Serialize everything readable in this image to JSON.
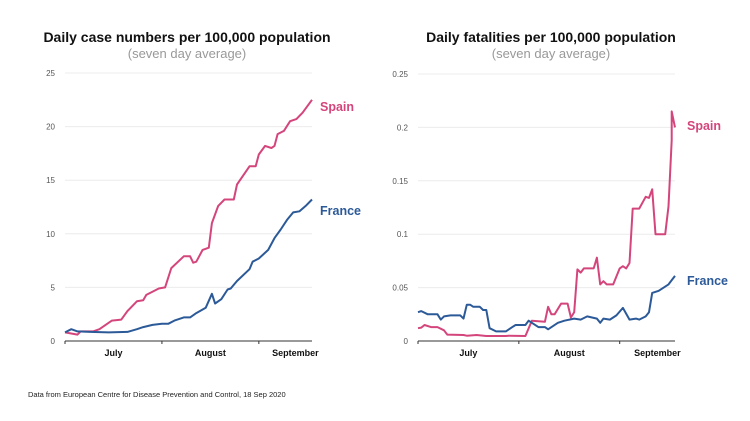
{
  "footnote": "Data from European Centre for Disease Prevention and Control, 18 Sep 2020",
  "colors": {
    "Spain": "#d4457c",
    "France": "#2c5a98",
    "grid": "#ececec",
    "axis": "#333333"
  },
  "chart_data": [
    {
      "type": "line",
      "title": "Daily case numbers per 100,000 population",
      "subtitle": "(seven day average)",
      "xlim": [
        "2020-07-01",
        "2020-09-18"
      ],
      "ylim": [
        0,
        25
      ],
      "yticks": [
        "0",
        "5",
        "10",
        "15",
        "20",
        "25"
      ],
      "xtick_labels": [
        "July",
        "August",
        "September"
      ],
      "grid": true,
      "series": [
        {
          "name": "Spain",
          "points": [
            [
              "2020-07-01",
              0.8
            ],
            [
              "2020-07-05",
              0.6
            ],
            [
              "2020-07-06",
              0.9
            ],
            [
              "2020-07-10",
              0.9
            ],
            [
              "2020-07-12",
              1.1
            ],
            [
              "2020-07-16",
              1.9
            ],
            [
              "2020-07-19",
              2.0
            ],
            [
              "2020-07-21",
              2.8
            ],
            [
              "2020-07-24",
              3.7
            ],
            [
              "2020-07-26",
              3.8
            ],
            [
              "2020-07-27",
              4.3
            ],
            [
              "2020-07-31",
              4.9
            ],
            [
              "2020-08-02",
              5.0
            ],
            [
              "2020-08-04",
              6.8
            ],
            [
              "2020-08-08",
              7.9
            ],
            [
              "2020-08-10",
              7.9
            ],
            [
              "2020-08-11",
              7.3
            ],
            [
              "2020-08-12",
              7.4
            ],
            [
              "2020-08-14",
              8.5
            ],
            [
              "2020-08-16",
              8.7
            ],
            [
              "2020-08-17",
              11.0
            ],
            [
              "2020-08-19",
              12.6
            ],
            [
              "2020-08-21",
              13.2
            ],
            [
              "2020-08-24",
              13.2
            ],
            [
              "2020-08-25",
              14.6
            ],
            [
              "2020-08-29",
              16.3
            ],
            [
              "2020-08-31",
              16.3
            ],
            [
              "2020-09-01",
              17.4
            ],
            [
              "2020-09-03",
              18.2
            ],
            [
              "2020-09-05",
              18.0
            ],
            [
              "2020-09-06",
              18.2
            ],
            [
              "2020-09-07",
              19.3
            ],
            [
              "2020-09-09",
              19.6
            ],
            [
              "2020-09-11",
              20.5
            ],
            [
              "2020-09-13",
              20.7
            ],
            [
              "2020-09-15",
              21.3
            ],
            [
              "2020-09-16",
              21.7
            ],
            [
              "2020-09-18",
              22.5
            ]
          ]
        },
        {
          "name": "France",
          "points": [
            [
              "2020-07-01",
              0.8
            ],
            [
              "2020-07-03",
              1.1
            ],
            [
              "2020-07-05",
              0.9
            ],
            [
              "2020-07-09",
              0.85
            ],
            [
              "2020-07-15",
              0.8
            ],
            [
              "2020-07-21",
              0.85
            ],
            [
              "2020-07-24",
              1.1
            ],
            [
              "2020-07-26",
              1.3
            ],
            [
              "2020-07-29",
              1.5
            ],
            [
              "2020-08-01",
              1.6
            ],
            [
              "2020-08-03",
              1.6
            ],
            [
              "2020-08-05",
              1.9
            ],
            [
              "2020-08-08",
              2.2
            ],
            [
              "2020-08-10",
              2.2
            ],
            [
              "2020-08-12",
              2.6
            ],
            [
              "2020-08-15",
              3.1
            ],
            [
              "2020-08-17",
              4.4
            ],
            [
              "2020-08-18",
              3.5
            ],
            [
              "2020-08-20",
              3.9
            ],
            [
              "2020-08-22",
              4.8
            ],
            [
              "2020-08-23",
              4.9
            ],
            [
              "2020-08-25",
              5.6
            ],
            [
              "2020-08-29",
              6.7
            ],
            [
              "2020-08-30",
              7.4
            ],
            [
              "2020-09-01",
              7.7
            ],
            [
              "2020-09-04",
              8.5
            ],
            [
              "2020-09-06",
              9.6
            ],
            [
              "2020-09-08",
              10.4
            ],
            [
              "2020-09-10",
              11.3
            ],
            [
              "2020-09-12",
              12.0
            ],
            [
              "2020-09-14",
              12.1
            ],
            [
              "2020-09-16",
              12.6
            ],
            [
              "2020-09-18",
              13.2
            ]
          ]
        }
      ]
    },
    {
      "type": "line",
      "title": "Daily fatalities per 100,000 population",
      "subtitle": "(seven day average)",
      "xlim": [
        "2020-07-01",
        "2020-09-18"
      ],
      "ylim": [
        0,
        0.25
      ],
      "yticks": [
        "0",
        "0.05",
        "0.1",
        "0.15",
        "0.2",
        "0.25"
      ],
      "xtick_labels": [
        "July",
        "August",
        "September"
      ],
      "grid": true,
      "series": [
        {
          "name": "Spain",
          "points": [
            [
              "2020-07-01",
              0.012
            ],
            [
              "2020-07-02",
              0.0125
            ],
            [
              "2020-07-03",
              0.015
            ],
            [
              "2020-07-05",
              0.013
            ],
            [
              "2020-07-07",
              0.013
            ],
            [
              "2020-07-09",
              0.01
            ],
            [
              "2020-07-10",
              0.006
            ],
            [
              "2020-07-15",
              0.0056
            ],
            [
              "2020-07-16",
              0.005
            ],
            [
              "2020-07-19",
              0.0056
            ],
            [
              "2020-07-22",
              0.0047
            ],
            [
              "2020-07-28",
              0.0047
            ],
            [
              "2020-07-29",
              0.005
            ],
            [
              "2020-08-03",
              0.0047
            ],
            [
              "2020-08-05",
              0.019
            ],
            [
              "2020-08-09",
              0.018
            ],
            [
              "2020-08-10",
              0.032
            ],
            [
              "2020-08-11",
              0.025
            ],
            [
              "2020-08-12",
              0.025
            ],
            [
              "2020-08-14",
              0.035
            ],
            [
              "2020-08-16",
              0.035
            ],
            [
              "2020-08-17",
              0.022
            ],
            [
              "2020-08-18",
              0.027
            ],
            [
              "2020-08-19",
              0.067
            ],
            [
              "2020-08-20",
              0.064
            ],
            [
              "2020-08-21",
              0.068
            ],
            [
              "2020-08-24",
              0.068
            ],
            [
              "2020-08-25",
              0.078
            ],
            [
              "2020-08-26",
              0.053
            ],
            [
              "2020-08-27",
              0.056
            ],
            [
              "2020-08-28",
              0.053
            ],
            [
              "2020-08-30",
              0.053
            ],
            [
              "2020-09-01",
              0.068
            ],
            [
              "2020-09-02",
              0.07
            ],
            [
              "2020-09-03",
              0.068
            ],
            [
              "2020-09-04",
              0.073
            ],
            [
              "2020-09-05",
              0.124
            ],
            [
              "2020-09-07",
              0.124
            ],
            [
              "2020-09-09",
              0.135
            ],
            [
              "2020-09-10",
              0.134
            ],
            [
              "2020-09-11",
              0.142
            ],
            [
              "2020-09-12",
              0.1
            ],
            [
              "2020-09-15",
              0.1
            ],
            [
              "2020-09-16",
              0.126
            ],
            [
              "2020-09-17",
              0.188
            ],
            [
              "2020-09-17",
              0.215
            ],
            [
              "2020-09-18",
              0.2
            ]
          ]
        },
        {
          "name": "France",
          "points": [
            [
              "2020-07-01",
              0.027
            ],
            [
              "2020-07-02",
              0.028
            ],
            [
              "2020-07-04",
              0.025
            ],
            [
              "2020-07-07",
              0.025
            ],
            [
              "2020-07-08",
              0.02
            ],
            [
              "2020-07-09",
              0.023
            ],
            [
              "2020-07-11",
              0.024
            ],
            [
              "2020-07-14",
              0.024
            ],
            [
              "2020-07-15",
              0.021
            ],
            [
              "2020-07-16",
              0.034
            ],
            [
              "2020-07-17",
              0.034
            ],
            [
              "2020-07-18",
              0.032
            ],
            [
              "2020-07-20",
              0.032
            ],
            [
              "2020-07-21",
              0.029
            ],
            [
              "2020-07-22",
              0.029
            ],
            [
              "2020-07-23",
              0.012
            ],
            [
              "2020-07-25",
              0.009
            ],
            [
              "2020-07-28",
              0.009
            ],
            [
              "2020-07-30",
              0.013
            ],
            [
              "2020-07-31",
              0.015
            ],
            [
              "2020-08-03",
              0.015
            ],
            [
              "2020-08-04",
              0.019
            ],
            [
              "2020-08-07",
              0.013
            ],
            [
              "2020-08-09",
              0.013
            ],
            [
              "2020-08-10",
              0.011
            ],
            [
              "2020-08-13",
              0.017
            ],
            [
              "2020-08-15",
              0.019
            ],
            [
              "2020-08-18",
              0.021
            ],
            [
              "2020-08-20",
              0.02
            ],
            [
              "2020-08-22",
              0.023
            ],
            [
              "2020-08-25",
              0.021
            ],
            [
              "2020-08-26",
              0.017
            ],
            [
              "2020-08-27",
              0.021
            ],
            [
              "2020-08-29",
              0.02
            ],
            [
              "2020-08-31",
              0.024
            ],
            [
              "2020-09-02",
              0.031
            ],
            [
              "2020-09-04",
              0.02
            ],
            [
              "2020-09-06",
              0.021
            ],
            [
              "2020-09-07",
              0.02
            ],
            [
              "2020-09-09",
              0.023
            ],
            [
              "2020-09-10",
              0.027
            ],
            [
              "2020-09-11",
              0.045
            ],
            [
              "2020-09-13",
              0.047
            ],
            [
              "2020-09-16",
              0.053
            ],
            [
              "2020-09-18",
              0.061
            ]
          ]
        }
      ]
    }
  ]
}
